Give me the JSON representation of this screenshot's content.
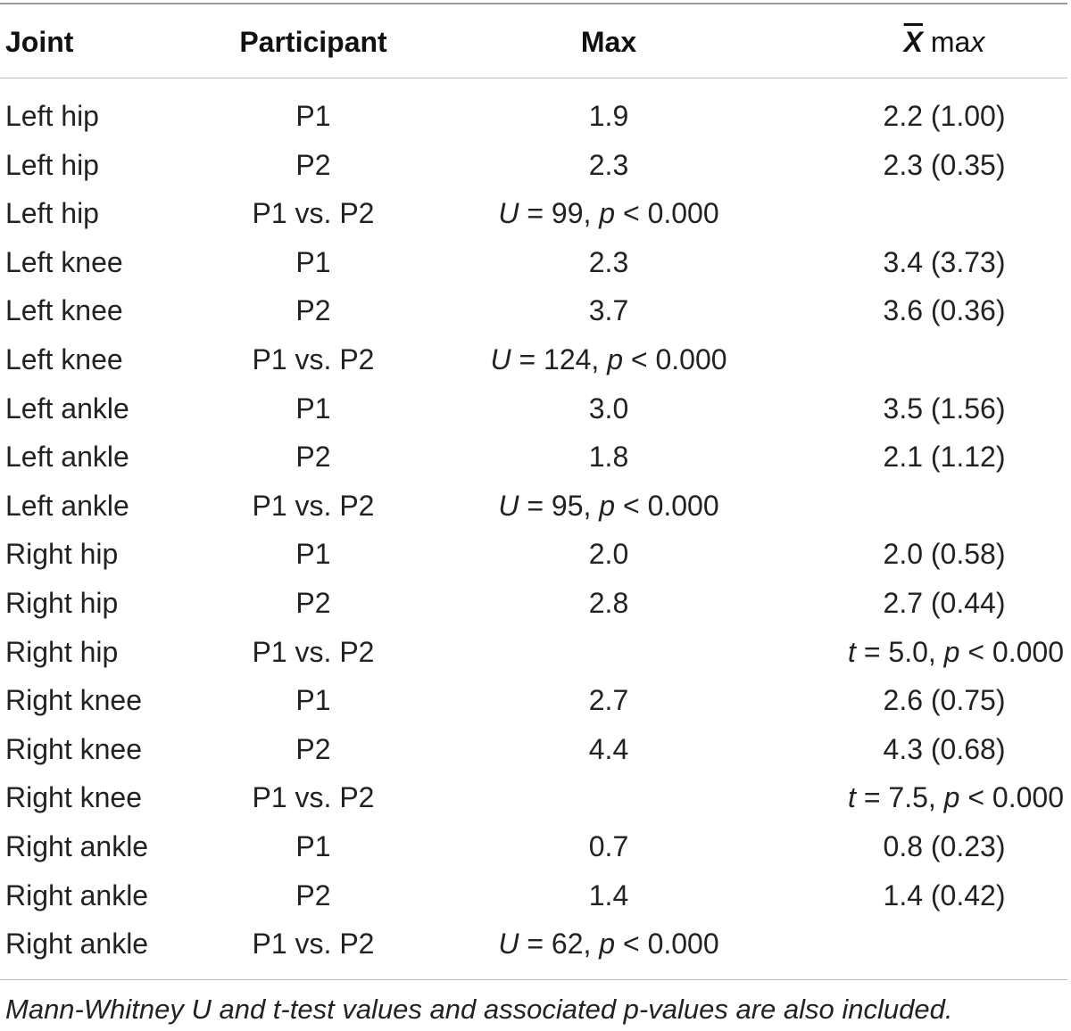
{
  "header": {
    "joint": "Joint",
    "participant": "Participant",
    "max": "Max",
    "xmax_symbol": "X",
    "xmax_suffix_a": " ma",
    "xmax_suffix_b": "x"
  },
  "rows": [
    {
      "joint": "Left hip",
      "participant": "P1",
      "max": "1.9",
      "xmax": "2.2 (1.00)"
    },
    {
      "joint": "Left hip",
      "participant": "P2",
      "max": "2.3",
      "xmax": "2.3 (0.35)"
    },
    {
      "joint": "Left hip",
      "participant": "P1 vs. P2",
      "stat": {
        "col": "max",
        "sym": "U",
        "mid": " = 99, ",
        "p": "p",
        "tail": " < 0.000"
      }
    },
    {
      "joint": "Left knee",
      "participant": "P1",
      "max": "2.3",
      "xmax": "3.4 (3.73)"
    },
    {
      "joint": "Left knee",
      "participant": "P2",
      "max": "3.7",
      "xmax": "3.6 (0.36)"
    },
    {
      "joint": "Left knee",
      "participant": "P1 vs. P2",
      "stat": {
        "col": "max",
        "sym": "U",
        "mid": " = 124, ",
        "p": "p",
        "tail": " < 0.000"
      }
    },
    {
      "joint": "Left ankle",
      "participant": "P1",
      "max": "3.0",
      "xmax": "3.5 (1.56)"
    },
    {
      "joint": "Left ankle",
      "participant": "P2",
      "max": "1.8",
      "xmax": "2.1 (1.12)"
    },
    {
      "joint": "Left ankle",
      "participant": "P1 vs. P2",
      "stat": {
        "col": "max",
        "sym": "U",
        "mid": " = 95, ",
        "p": "p",
        "tail": " < 0.000"
      }
    },
    {
      "joint": "Right hip",
      "participant": "P1",
      "max": "2.0",
      "xmax": "2.0 (0.58)"
    },
    {
      "joint": "Right hip",
      "participant": "P2",
      "max": "2.8",
      "xmax": "2.7 (0.44)"
    },
    {
      "joint": "Right hip",
      "participant": "P1 vs. P2",
      "stat": {
        "col": "xmax",
        "sym": "t",
        "mid": " = 5.0, ",
        "p": "p",
        "tail": " < 0.000"
      }
    },
    {
      "joint": "Right knee",
      "participant": "P1",
      "max": "2.7",
      "xmax": "2.6 (0.75)"
    },
    {
      "joint": "Right knee",
      "participant": "P2",
      "max": "4.4",
      "xmax": "4.3 (0.68)"
    },
    {
      "joint": "Right knee",
      "participant": "P1 vs. P2",
      "stat": {
        "col": "xmax",
        "sym": "t",
        "mid": " = 7.5, ",
        "p": "p",
        "tail": " < 0.000"
      }
    },
    {
      "joint": "Right ankle",
      "participant": "P1",
      "max": "0.7",
      "xmax": "0.8 (0.23)"
    },
    {
      "joint": "Right ankle",
      "participant": "P2",
      "max": "1.4",
      "xmax": "1.4 (0.42)"
    },
    {
      "joint": "Right ankle",
      "participant": "P1 vs. P2",
      "stat": {
        "col": "max",
        "sym": "U",
        "mid": " = 62, ",
        "p": "p",
        "tail": " < 0.000"
      }
    }
  ],
  "footnote": "Mann-Whitney U and t-test values and associated p-values are also included."
}
